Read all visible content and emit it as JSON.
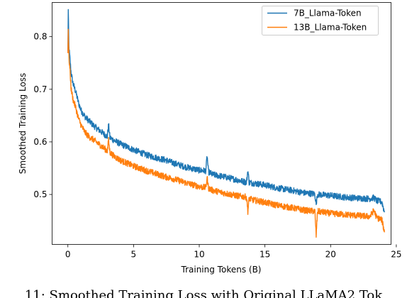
{
  "chart_data": {
    "type": "line",
    "title": "",
    "xlabel": "Training Tokens (B)",
    "ylabel": "Smoothed Training Loss",
    "xlim": [
      -1.2,
      24.6
    ],
    "ylim": [
      0.405,
      0.865
    ],
    "xticks": [
      0,
      5,
      10,
      15,
      20,
      25
    ],
    "yticks": [
      0.5,
      0.6,
      0.7,
      0.8
    ],
    "grid": false,
    "legend_position": "top-right",
    "series": [
      {
        "name": "7B_Llama-Token",
        "color": "#1f77b4",
        "x": [
          0,
          0.03,
          0.08,
          0.15,
          0.25,
          0.4,
          0.6,
          0.8,
          1.0,
          1.3,
          1.6,
          2.0,
          2.5,
          3.0,
          3.1,
          3.2,
          3.5,
          4.0,
          5.0,
          6.0,
          7.0,
          7.5,
          8.0,
          9.0,
          10.0,
          10.5,
          10.6,
          10.7,
          11.0,
          12.0,
          13.0,
          13.6,
          13.7,
          13.8,
          14.0,
          15.0,
          16.0,
          17.0,
          18.0,
          18.8,
          18.9,
          19.0,
          19.5,
          20.0,
          21.0,
          22.0,
          23.0,
          23.3,
          23.5,
          23.9,
          24.1
        ],
        "y": [
          0.77,
          0.85,
          0.78,
          0.76,
          0.73,
          0.71,
          0.695,
          0.675,
          0.66,
          0.648,
          0.64,
          0.63,
          0.62,
          0.61,
          0.633,
          0.608,
          0.603,
          0.596,
          0.585,
          0.575,
          0.568,
          0.565,
          0.56,
          0.552,
          0.546,
          0.545,
          0.574,
          0.543,
          0.538,
          0.533,
          0.527,
          0.523,
          0.546,
          0.523,
          0.522,
          0.518,
          0.512,
          0.508,
          0.503,
          0.501,
          0.482,
          0.5,
          0.499,
          0.498,
          0.495,
          0.493,
          0.492,
          0.494,
          0.488,
          0.486,
          0.466
        ]
      },
      {
        "name": "13B_Llama-Token",
        "color": "#ff7f0e",
        "x": [
          0,
          0.03,
          0.08,
          0.15,
          0.25,
          0.4,
          0.6,
          0.8,
          1.0,
          1.3,
          1.6,
          2.0,
          2.5,
          3.0,
          3.1,
          3.2,
          3.5,
          4.0,
          5.0,
          6.0,
          7.0,
          7.5,
          8.0,
          9.0,
          10.0,
          10.5,
          10.6,
          10.7,
          11.0,
          12.0,
          13.0,
          13.6,
          13.7,
          13.8,
          14.0,
          15.0,
          16.0,
          17.0,
          18.0,
          18.8,
          18.9,
          19.0,
          19.5,
          20.0,
          21.0,
          22.0,
          23.0,
          23.3,
          23.5,
          23.9,
          24.1
        ],
        "y": [
          0.77,
          0.815,
          0.76,
          0.74,
          0.7,
          0.68,
          0.665,
          0.645,
          0.632,
          0.618,
          0.61,
          0.603,
          0.593,
          0.583,
          0.603,
          0.58,
          0.573,
          0.565,
          0.554,
          0.545,
          0.537,
          0.533,
          0.53,
          0.522,
          0.515,
          0.513,
          0.533,
          0.512,
          0.508,
          0.502,
          0.497,
          0.495,
          0.468,
          0.493,
          0.49,
          0.485,
          0.479,
          0.475,
          0.47,
          0.468,
          0.422,
          0.468,
          0.466,
          0.464,
          0.462,
          0.46,
          0.458,
          0.47,
          0.456,
          0.452,
          0.428
        ]
      }
    ]
  },
  "caption": "11: Smoothed Training Loss with Original LLaMA2 Tok"
}
